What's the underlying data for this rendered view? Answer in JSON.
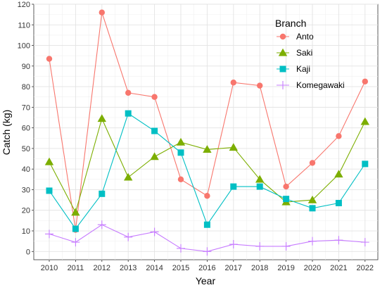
{
  "chart_data": {
    "type": "line",
    "xlabel": "Year",
    "ylabel": "Catch (kg)",
    "x": [
      "2010",
      "2011",
      "2012",
      "2013",
      "2014",
      "2015",
      "2016",
      "2017",
      "2018",
      "2019",
      "2020",
      "2021",
      "2022"
    ],
    "ylim": [
      -4,
      120
    ],
    "yticks": [
      0,
      10,
      20,
      30,
      40,
      50,
      60,
      70,
      80,
      90,
      100,
      110,
      120
    ],
    "grid": true,
    "legend": {
      "title": "Branch",
      "position": "top-right"
    },
    "series": [
      {
        "name": "Anto",
        "color": "#F8766D",
        "marker": "circle",
        "values": [
          93.5,
          10.5,
          116,
          77,
          75,
          35,
          27,
          82,
          80.5,
          31.5,
          43,
          56,
          82.5
        ]
      },
      {
        "name": "Saki",
        "color": "#7CAE00",
        "marker": "triangle",
        "values": [
          43.5,
          19,
          64.5,
          36,
          46,
          53,
          49.5,
          50.5,
          35,
          24,
          25,
          37.5,
          63
        ]
      },
      {
        "name": "Kaji",
        "color": "#00BFC4",
        "marker": "square",
        "values": [
          29.5,
          11,
          28,
          67,
          58.5,
          48,
          13,
          31.5,
          31.5,
          25.5,
          21,
          23.5,
          42.5
        ]
      },
      {
        "name": "Komegawaki",
        "color": "#C77CFF",
        "marker": "plus",
        "values": [
          8.5,
          4.5,
          13,
          7,
          9.5,
          1.5,
          0,
          3.5,
          2.5,
          2.5,
          5,
          5.5,
          4.5
        ]
      }
    ]
  }
}
